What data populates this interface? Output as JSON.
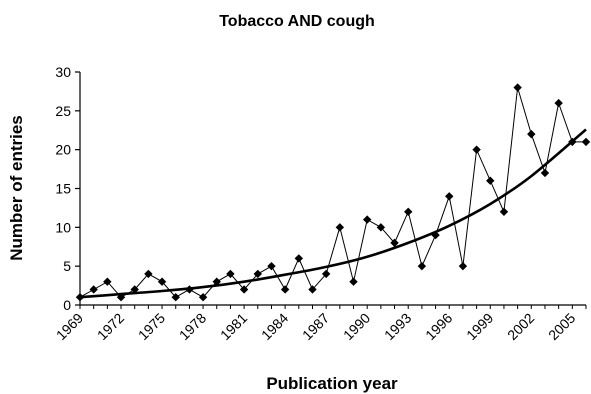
{
  "chart_data": {
    "type": "line",
    "title": "Tobacco AND cough",
    "xlabel": "Publication year",
    "ylabel": "Number of entries",
    "xlim": [
      1969,
      2006
    ],
    "ylim": [
      0,
      30
    ],
    "y_ticks": [
      0,
      5,
      10,
      15,
      20,
      25,
      30
    ],
    "x_ticks": [
      1969,
      1972,
      1975,
      1978,
      1981,
      1984,
      1987,
      1990,
      1993,
      1996,
      1999,
      2002,
      2005
    ],
    "grid": false,
    "legend": "none",
    "series": [
      {
        "style": "thin line with diamond markers",
        "color": "#000000",
        "x": [
          1969,
          1970,
          1971,
          1972,
          1973,
          1974,
          1975,
          1976,
          1977,
          1978,
          1979,
          1980,
          1981,
          1982,
          1983,
          1984,
          1985,
          1986,
          1987,
          1988,
          1989,
          1990,
          1991,
          1992,
          1993,
          1994,
          1995,
          1996,
          1997,
          1998,
          1999,
          2000,
          2001,
          2002,
          2003,
          2004,
          2005,
          2006
        ],
        "y": [
          1,
          2,
          3,
          1,
          2,
          4,
          3,
          1,
          2,
          1,
          3,
          4,
          2,
          4,
          5,
          2,
          6,
          2,
          4,
          10,
          3,
          11,
          10,
          8,
          12,
          5,
          9,
          14,
          5,
          20,
          16,
          12,
          28,
          22,
          17,
          26,
          21,
          21
        ]
      },
      {
        "style": "thick exponential trend line",
        "color": "#000000",
        "x": [
          1969,
          1972,
          1975,
          1978,
          1981,
          1984,
          1987,
          1990,
          1993,
          1996,
          1999,
          2002,
          2006
        ],
        "y": [
          1.0,
          1.4,
          1.8,
          2.3,
          3.0,
          3.9,
          4.9,
          6.2,
          8.0,
          10.2,
          13.0,
          16.6,
          22.6
        ]
      }
    ]
  }
}
